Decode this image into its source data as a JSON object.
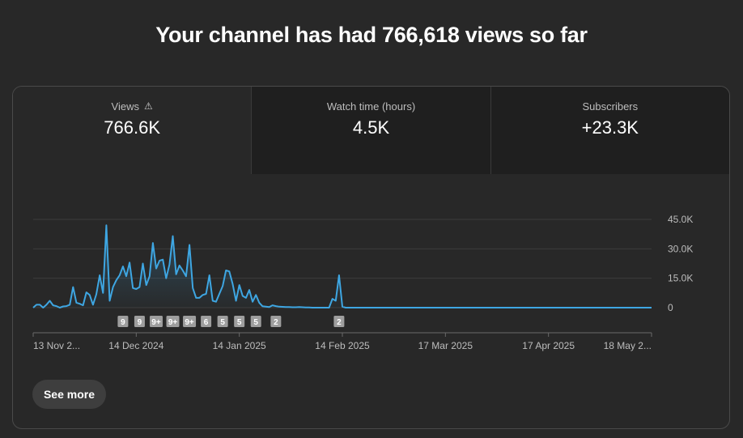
{
  "headline": "Your channel has had 766,618 views so far",
  "tabs": [
    {
      "label": "Views",
      "value": "766.6K",
      "warning": true
    },
    {
      "label": "Watch time (hours)",
      "value": "4.5K"
    },
    {
      "label": "Subscribers",
      "value": "+23.3K"
    }
  ],
  "see_more_label": "See more",
  "icons": {
    "warning": "warning-triangle-icon"
  },
  "chart_data": {
    "type": "line",
    "y_ticks": [
      {
        "value": 0,
        "label": "0"
      },
      {
        "value": 15000,
        "label": "15.0K"
      },
      {
        "value": 30000,
        "label": "30.0K"
      },
      {
        "value": 45000,
        "label": "45.0K"
      }
    ],
    "ylim": [
      0,
      45000
    ],
    "x_ticks": [
      {
        "day": 0,
        "label": "13 Nov 2..."
      },
      {
        "day": 31,
        "label": "14 Dec 2024"
      },
      {
        "day": 62,
        "label": "14 Jan 2025"
      },
      {
        "day": 93,
        "label": "14 Feb 2025"
      },
      {
        "day": 124,
        "label": "17 Mar 2025"
      },
      {
        "day": 155,
        "label": "17 Apr 2025"
      },
      {
        "day": 186,
        "label": "18 May 2..."
      }
    ],
    "xlim": [
      0,
      186
    ],
    "line_color": "#3ea6e2",
    "series": [
      {
        "values": [
          [
            0,
            0
          ],
          [
            1,
            1500
          ],
          [
            2,
            1500
          ],
          [
            3,
            0
          ],
          [
            4,
            1500
          ],
          [
            5,
            3500
          ],
          [
            6,
            1200
          ],
          [
            7,
            800
          ],
          [
            8,
            0
          ],
          [
            9,
            600
          ],
          [
            10,
            800
          ],
          [
            11,
            1500
          ],
          [
            12,
            10500
          ],
          [
            13,
            2500
          ],
          [
            14,
            2000
          ],
          [
            15,
            1200
          ],
          [
            16,
            7800
          ],
          [
            17,
            6500
          ],
          [
            18,
            1500
          ],
          [
            19,
            6800
          ],
          [
            20,
            16500
          ],
          [
            21,
            7500
          ],
          [
            22,
            42000
          ],
          [
            23,
            3500
          ],
          [
            24,
            10500
          ],
          [
            25,
            14000
          ],
          [
            26,
            16500
          ],
          [
            27,
            21000
          ],
          [
            28,
            16000
          ],
          [
            29,
            23000
          ],
          [
            30,
            10000
          ],
          [
            31,
            9500
          ],
          [
            32,
            10500
          ],
          [
            33,
            22500
          ],
          [
            34,
            11500
          ],
          [
            35,
            16000
          ],
          [
            36,
            33000
          ],
          [
            37,
            20000
          ],
          [
            38,
            24000
          ],
          [
            39,
            24500
          ],
          [
            40,
            15000
          ],
          [
            41,
            22000
          ],
          [
            42,
            36500
          ],
          [
            43,
            17000
          ],
          [
            44,
            21500
          ],
          [
            45,
            19000
          ],
          [
            46,
            16000
          ],
          [
            47,
            32000
          ],
          [
            48,
            10000
          ],
          [
            49,
            5000
          ],
          [
            50,
            5000
          ],
          [
            51,
            6500
          ],
          [
            52,
            7000
          ],
          [
            53,
            16500
          ],
          [
            54,
            3500
          ],
          [
            55,
            3000
          ],
          [
            56,
            7000
          ],
          [
            57,
            11000
          ],
          [
            58,
            19000
          ],
          [
            59,
            18500
          ],
          [
            60,
            12000
          ],
          [
            61,
            3500
          ],
          [
            62,
            11500
          ],
          [
            63,
            6000
          ],
          [
            64,
            5000
          ],
          [
            65,
            9000
          ],
          [
            66,
            3000
          ],
          [
            67,
            6500
          ],
          [
            68,
            2500
          ],
          [
            69,
            700
          ],
          [
            70,
            500
          ],
          [
            71,
            300
          ],
          [
            72,
            1200
          ],
          [
            73,
            800
          ],
          [
            74,
            500
          ],
          [
            75,
            400
          ],
          [
            76,
            300
          ],
          [
            77,
            300
          ],
          [
            78,
            200
          ],
          [
            79,
            200
          ],
          [
            80,
            300
          ],
          [
            81,
            200
          ],
          [
            82,
            100
          ],
          [
            83,
            100
          ],
          [
            84,
            0
          ],
          [
            85,
            0
          ],
          [
            86,
            0
          ],
          [
            87,
            0
          ],
          [
            88,
            0
          ],
          [
            89,
            0
          ],
          [
            90,
            4500
          ],
          [
            91,
            3500
          ],
          [
            92,
            16500
          ],
          [
            93,
            500
          ],
          [
            94,
            0
          ],
          [
            95,
            0
          ],
          [
            100,
            0
          ],
          [
            120,
            0
          ],
          [
            140,
            0
          ],
          [
            160,
            0
          ],
          [
            186,
            0
          ]
        ]
      }
    ],
    "annotations": [
      {
        "day": 27,
        "label": "9"
      },
      {
        "day": 32,
        "label": "9"
      },
      {
        "day": 37,
        "label": "9+"
      },
      {
        "day": 42,
        "label": "9+"
      },
      {
        "day": 47,
        "label": "9+"
      },
      {
        "day": 52,
        "label": "6"
      },
      {
        "day": 57,
        "label": "5"
      },
      {
        "day": 62,
        "label": "5"
      },
      {
        "day": 67,
        "label": "5"
      },
      {
        "day": 73,
        "label": "2"
      },
      {
        "day": 92,
        "label": "2"
      }
    ]
  }
}
